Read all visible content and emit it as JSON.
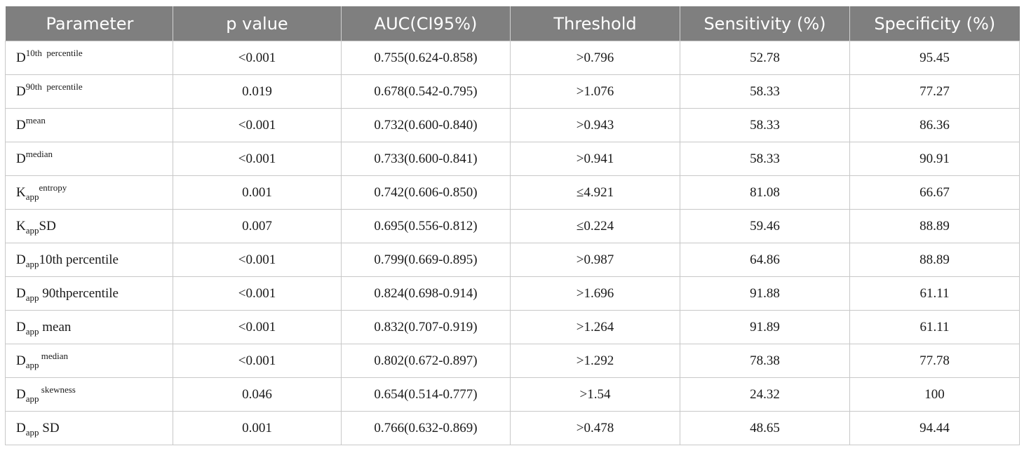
{
  "headers": [
    "Parameter",
    "p value",
    "AUC(CI95%)",
    "Threshold",
    "Sensitivity (%)",
    "Specificity (%)"
  ],
  "rows": [
    {
      "base": "D",
      "sub": "",
      "mid": "",
      "sup": "10th  percentile",
      "p": "<0.001",
      "auc": "0.755(0.624-0.858)",
      "threshold": ">0.796",
      "sensitivity": "52.78",
      "specificity": "95.45"
    },
    {
      "base": "D",
      "sub": "",
      "mid": "",
      "sup": "90th  percentile",
      "p": "0.019",
      "auc": "0.678(0.542-0.795)",
      "threshold": ">1.076",
      "sensitivity": "58.33",
      "specificity": "77.27"
    },
    {
      "base": "D",
      "sub": "",
      "mid": "",
      "sup": "mean",
      "p": "<0.001",
      "auc": "0.732(0.600-0.840)",
      "threshold": ">0.943",
      "sensitivity": "58.33",
      "specificity": "86.36"
    },
    {
      "base": "D",
      "sub": "",
      "mid": "",
      "sup": "median",
      "p": "<0.001",
      "auc": "0.733(0.600-0.841)",
      "threshold": ">0.941",
      "sensitivity": "58.33",
      "specificity": "90.91"
    },
    {
      "base": "K",
      "sub": "app",
      "mid": "",
      "sup": "entropy",
      "p": "0.001",
      "auc": "0.742(0.606-0.850)",
      "threshold": "≤4.921",
      "sensitivity": "81.08",
      "specificity": "66.67"
    },
    {
      "base": "K",
      "sub": "app",
      "mid": "SD",
      "sup": "",
      "p": "0.007",
      "auc": "0.695(0.556-0.812)",
      "threshold": "≤0.224",
      "sensitivity": "59.46",
      "specificity": "88.89"
    },
    {
      "base": "D",
      "sub": "app",
      "mid": "10th percentile",
      "sup": "",
      "p": "<0.001",
      "auc": "0.799(0.669-0.895)",
      "threshold": ">0.987",
      "sensitivity": "64.86",
      "specificity": "88.89"
    },
    {
      "base": "D",
      "sub": "app",
      "mid": " 90thpercentile",
      "sup": "",
      "p": "<0.001",
      "auc": "0.824(0.698-0.914)",
      "threshold": ">1.696",
      "sensitivity": "91.88",
      "specificity": "61.11"
    },
    {
      "base": "D",
      "sub": "app",
      "mid": " mean",
      "sup": "",
      "p": "<0.001",
      "auc": "0.832(0.707-0.919)",
      "threshold": ">1.264",
      "sensitivity": "91.89",
      "specificity": "61.11"
    },
    {
      "base": "D",
      "sub": "app",
      "mid": "",
      "sup": " median",
      "p": "<0.001",
      "auc": "0.802(0.672-0.897)",
      "threshold": ">1.292",
      "sensitivity": "78.38",
      "specificity": "77.78"
    },
    {
      "base": "D",
      "sub": "app",
      "mid": "",
      "sup": " skewness",
      "p": "0.046",
      "auc": "0.654(0.514-0.777)",
      "threshold": ">1.54",
      "sensitivity": "24.32",
      "specificity": "100"
    },
    {
      "base": "D",
      "sub": "app",
      "mid": " SD",
      "sup": "",
      "p": "0.001",
      "auc": "0.766(0.632-0.869)",
      "threshold": ">0.478",
      "sensitivity": "48.65",
      "specificity": "94.44"
    }
  ]
}
